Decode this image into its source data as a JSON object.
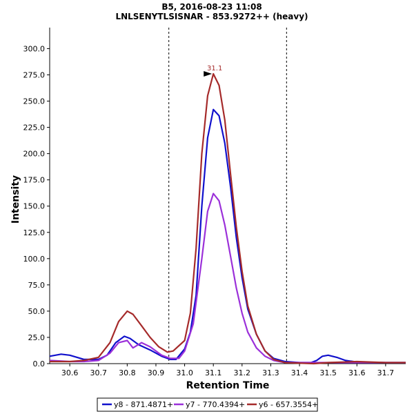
{
  "chart_data": {
    "type": "line",
    "title": "B5, 2016-08-23 11:08",
    "subtitle": "LNLSENYTLSISNAR - 853.9272++ (heavy)",
    "xlabel": "Retention Time",
    "ylabel": "Intensity",
    "xlim": [
      30.53,
      31.77
    ],
    "ylim": [
      0,
      320
    ],
    "x_ticks": [
      "30.6",
      "30.7",
      "30.8",
      "30.9",
      "31.0",
      "31.1",
      "31.2",
      "31.3",
      "31.4",
      "31.5",
      "31.6",
      "31.7"
    ],
    "y_ticks": [
      "0.0",
      "25.0",
      "50.0",
      "75.0",
      "100.0",
      "125.0",
      "150.0",
      "175.0",
      "200.0",
      "225.0",
      "250.0",
      "275.0",
      "300.0"
    ],
    "grid": false,
    "legend_position": "bottom",
    "boundary_lines": [
      30.945,
      31.355
    ],
    "annotation": {
      "label": "31.1",
      "x": 31.1,
      "y": 276
    },
    "series": [
      {
        "name": "y8 - 871.4871+",
        "color": "#1010cc",
        "points": [
          [
            30.53,
            7
          ],
          [
            30.57,
            9
          ],
          [
            30.6,
            8
          ],
          [
            30.65,
            4
          ],
          [
            30.7,
            4
          ],
          [
            30.73,
            8
          ],
          [
            30.76,
            20
          ],
          [
            30.79,
            26
          ],
          [
            30.81,
            24
          ],
          [
            30.84,
            18
          ],
          [
            30.88,
            13
          ],
          [
            30.92,
            7
          ],
          [
            30.95,
            4
          ],
          [
            30.97,
            4
          ],
          [
            31.0,
            14
          ],
          [
            31.02,
            30
          ],
          [
            31.04,
            65
          ],
          [
            31.06,
            150
          ],
          [
            31.08,
            215
          ],
          [
            31.1,
            242
          ],
          [
            31.12,
            236
          ],
          [
            31.14,
            210
          ],
          [
            31.16,
            168
          ],
          [
            31.18,
            120
          ],
          [
            31.2,
            82
          ],
          [
            31.22,
            52
          ],
          [
            31.25,
            28
          ],
          [
            31.28,
            12
          ],
          [
            31.31,
            5
          ],
          [
            31.35,
            2
          ],
          [
            31.4,
            1
          ],
          [
            31.44,
            1
          ],
          [
            31.46,
            3
          ],
          [
            31.48,
            7
          ],
          [
            31.5,
            8
          ],
          [
            31.53,
            6
          ],
          [
            31.56,
            3
          ],
          [
            31.6,
            1.5
          ],
          [
            31.7,
            1
          ],
          [
            31.77,
            1
          ]
        ]
      },
      {
        "name": "y7 - 770.4394+",
        "color": "#9b30d9",
        "points": [
          [
            30.53,
            3
          ],
          [
            30.6,
            2
          ],
          [
            30.65,
            2
          ],
          [
            30.7,
            3
          ],
          [
            30.74,
            10
          ],
          [
            30.77,
            20
          ],
          [
            30.8,
            22
          ],
          [
            30.82,
            15
          ],
          [
            30.85,
            20
          ],
          [
            30.88,
            16
          ],
          [
            30.92,
            8
          ],
          [
            30.95,
            5
          ],
          [
            30.98,
            5
          ],
          [
            31.0,
            12
          ],
          [
            31.03,
            38
          ],
          [
            31.06,
            100
          ],
          [
            31.08,
            145
          ],
          [
            31.1,
            162
          ],
          [
            31.12,
            155
          ],
          [
            31.14,
            132
          ],
          [
            31.16,
            102
          ],
          [
            31.18,
            72
          ],
          [
            31.2,
            48
          ],
          [
            31.22,
            30
          ],
          [
            31.25,
            15
          ],
          [
            31.28,
            7
          ],
          [
            31.31,
            3
          ],
          [
            31.35,
            1
          ],
          [
            31.45,
            1
          ],
          [
            31.5,
            1
          ],
          [
            31.6,
            1
          ],
          [
            31.7,
            1
          ],
          [
            31.77,
            1
          ]
        ]
      },
      {
        "name": "y6 - 657.3554+",
        "color": "#a52a2a",
        "points": [
          [
            30.53,
            2
          ],
          [
            30.6,
            2
          ],
          [
            30.65,
            3
          ],
          [
            30.7,
            6
          ],
          [
            30.74,
            20
          ],
          [
            30.77,
            40
          ],
          [
            30.8,
            50
          ],
          [
            30.82,
            47
          ],
          [
            30.85,
            36
          ],
          [
            30.88,
            25
          ],
          [
            30.91,
            16
          ],
          [
            30.94,
            11
          ],
          [
            30.96,
            12
          ],
          [
            31.0,
            22
          ],
          [
            31.02,
            48
          ],
          [
            31.04,
            110
          ],
          [
            31.06,
            200
          ],
          [
            31.08,
            255
          ],
          [
            31.1,
            276
          ],
          [
            31.12,
            265
          ],
          [
            31.14,
            232
          ],
          [
            31.16,
            180
          ],
          [
            31.18,
            130
          ],
          [
            31.2,
            88
          ],
          [
            31.22,
            55
          ],
          [
            31.25,
            28
          ],
          [
            31.28,
            12
          ],
          [
            31.31,
            4
          ],
          [
            31.35,
            1
          ],
          [
            31.45,
            0
          ],
          [
            31.5,
            1
          ],
          [
            31.6,
            2
          ],
          [
            31.7,
            1
          ],
          [
            31.77,
            1
          ]
        ]
      }
    ]
  }
}
